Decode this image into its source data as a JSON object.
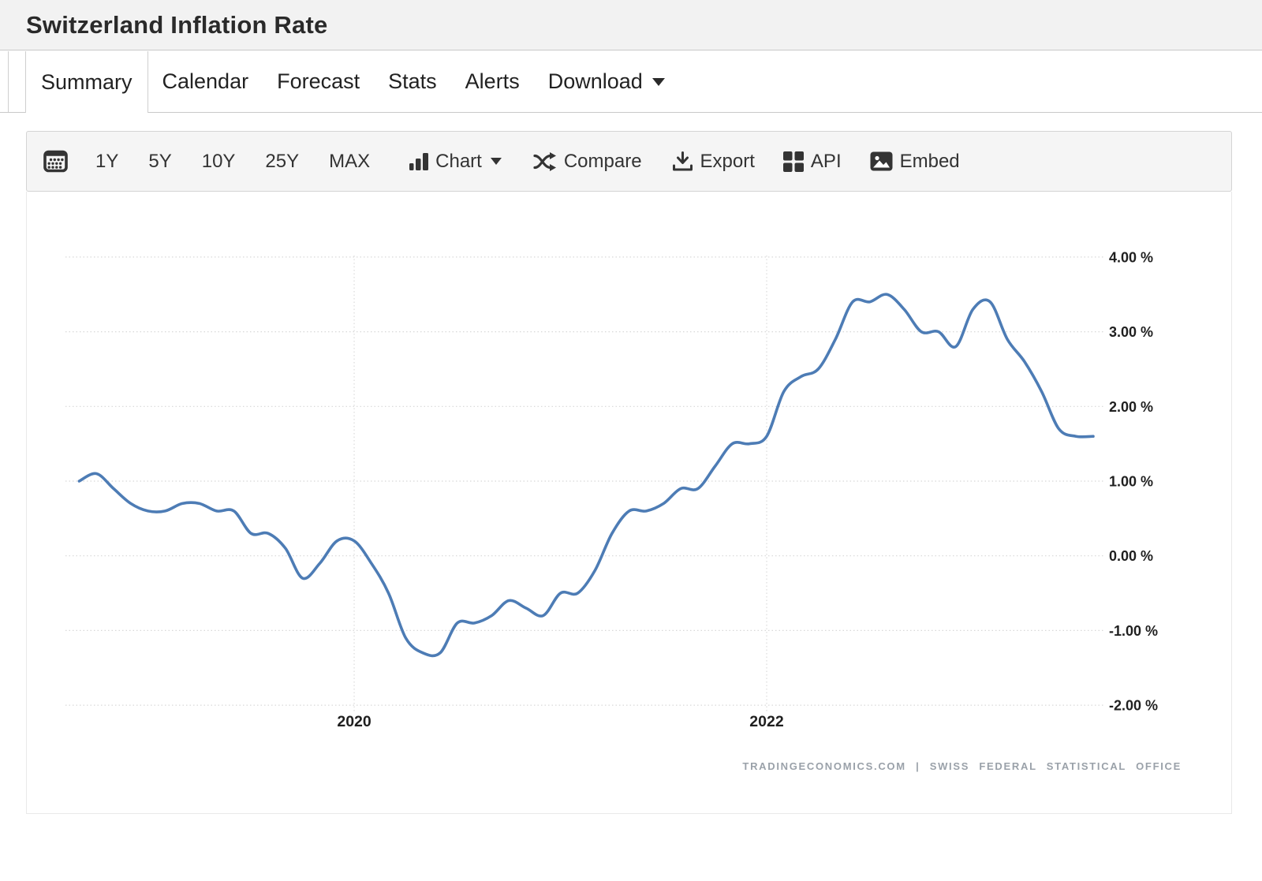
{
  "header": {
    "title": "Switzerland Inflation Rate"
  },
  "tabs": {
    "active": "Summary",
    "items": [
      {
        "label": "Summary",
        "active": true
      },
      {
        "label": "Calendar"
      },
      {
        "label": "Forecast"
      },
      {
        "label": "Stats"
      },
      {
        "label": "Alerts"
      },
      {
        "label": "Download",
        "has_caret": true
      }
    ]
  },
  "toolbar": {
    "calendar_button": {
      "icon": "calendar-icon"
    },
    "ranges": [
      {
        "label": "1Y"
      },
      {
        "label": "5Y"
      },
      {
        "label": "10Y"
      },
      {
        "label": "25Y"
      },
      {
        "label": "MAX"
      }
    ],
    "menus": [
      {
        "label": "Chart",
        "icon": "bar-chart-icon",
        "has_caret": true
      },
      {
        "label": "Compare",
        "icon": "shuffle-icon"
      },
      {
        "label": "Export",
        "icon": "download-icon"
      },
      {
        "label": "API",
        "icon": "grid-icon"
      },
      {
        "label": "Embed",
        "icon": "image-icon"
      }
    ]
  },
  "chart_data": {
    "type": "line",
    "title": "Switzerland Inflation Rate",
    "unit": "percent",
    "line_color": "#4d7cb5",
    "grid_color": "#d8d8d8",
    "grid_style": "dotted",
    "legend": "none",
    "ylim": [
      -2,
      4
    ],
    "yticks": [
      {
        "value": 4,
        "label": "4.00 %"
      },
      {
        "value": 3,
        "label": "3.00 %"
      },
      {
        "value": 2,
        "label": "2.00 %"
      },
      {
        "value": 1,
        "label": "1.00 %"
      },
      {
        "value": 0,
        "label": "0.00 %"
      },
      {
        "value": -1,
        "label": "-1.00 %"
      },
      {
        "value": -2,
        "label": "-2.00 %"
      }
    ],
    "xticks": [
      {
        "label": "2020",
        "index": 16
      },
      {
        "label": "2022",
        "index": 40
      }
    ],
    "categories": [
      "2018-09",
      "2018-10",
      "2018-11",
      "2018-12",
      "2019-01",
      "2019-02",
      "2019-03",
      "2019-04",
      "2019-05",
      "2019-06",
      "2019-07",
      "2019-08",
      "2019-09",
      "2019-10",
      "2019-11",
      "2019-12",
      "2020-01",
      "2020-02",
      "2020-03",
      "2020-04",
      "2020-05",
      "2020-06",
      "2020-07",
      "2020-08",
      "2020-09",
      "2020-10",
      "2020-11",
      "2020-12",
      "2021-01",
      "2021-02",
      "2021-03",
      "2021-04",
      "2021-05",
      "2021-06",
      "2021-07",
      "2021-08",
      "2021-09",
      "2021-10",
      "2021-11",
      "2021-12",
      "2022-01",
      "2022-02",
      "2022-03",
      "2022-04",
      "2022-05",
      "2022-06",
      "2022-07",
      "2022-08",
      "2022-09",
      "2022-10",
      "2022-11",
      "2022-12",
      "2023-01",
      "2023-02",
      "2023-03",
      "2023-04",
      "2023-05",
      "2023-06",
      "2023-07",
      "2023-08"
    ],
    "series": [
      {
        "name": "Switzerland Inflation Rate",
        "values": [
          1.0,
          1.1,
          0.9,
          0.7,
          0.6,
          0.6,
          0.7,
          0.7,
          0.6,
          0.6,
          0.3,
          0.3,
          0.1,
          -0.3,
          -0.1,
          0.2,
          0.2,
          -0.1,
          -0.5,
          -1.1,
          -1.3,
          -1.3,
          -0.9,
          -0.9,
          -0.8,
          -0.6,
          -0.7,
          -0.8,
          -0.5,
          -0.5,
          -0.2,
          0.3,
          0.6,
          0.6,
          0.7,
          0.9,
          0.9,
          1.2,
          1.5,
          1.5,
          1.6,
          2.2,
          2.4,
          2.5,
          2.9,
          3.4,
          3.4,
          3.5,
          3.3,
          3.0,
          3.0,
          2.8,
          3.3,
          3.4,
          2.9,
          2.6,
          2.2,
          1.7,
          1.6,
          1.6
        ]
      }
    ],
    "attribution": "TRADINGECONOMICS.COM | SWISS FEDERAL STATISTICAL OFFICE"
  }
}
